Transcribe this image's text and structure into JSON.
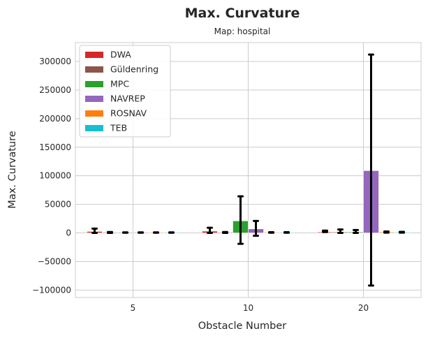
{
  "chart_data": {
    "type": "bar",
    "title": "Max. Curvature",
    "subtitle": "Map: hospital",
    "xlabel": "Obstacle Number",
    "ylabel": "Max. Curvature",
    "categories": [
      "5",
      "10",
      "20"
    ],
    "ylim": [
      -113000,
      333000
    ],
    "yticks": [
      -100000,
      -50000,
      0,
      50000,
      100000,
      150000,
      200000,
      250000,
      300000
    ],
    "ytick_labels": [
      "−100000",
      "−50000",
      "0",
      "50000",
      "100000",
      "150000",
      "200000",
      "250000",
      "300000"
    ],
    "grid": true,
    "legend_position": "top-left",
    "series": [
      {
        "name": "DWA",
        "color": "#d62728",
        "values": [
          2500,
          3000,
          1500
        ],
        "err_low": [
          0,
          0,
          1500
        ],
        "err_high": [
          7500,
          9000,
          4000
        ]
      },
      {
        "name": "Güldenring",
        "color": "#8c564b",
        "values": [
          1000,
          1000,
          1500
        ],
        "err_low": [
          0,
          0,
          0
        ],
        "err_high": [
          1500,
          1500,
          6000
        ]
      },
      {
        "name": "MPC",
        "color": "#2ca02c",
        "values": [
          600,
          21000,
          1500
        ],
        "err_low": [
          300,
          -19000,
          0
        ],
        "err_high": [
          900,
          64000,
          5000
        ]
      },
      {
        "name": "NAVREP",
        "color": "#9467bd",
        "values": [
          600,
          7000,
          109000
        ],
        "err_low": [
          300,
          -5000,
          -92000
        ],
        "err_high": [
          900,
          21000,
          312000
        ]
      },
      {
        "name": "ROSNAV",
        "color": "#ff7f0e",
        "values": [
          600,
          900,
          1500
        ],
        "err_low": [
          300,
          300,
          500
        ],
        "err_high": [
          900,
          1300,
          2500
        ]
      },
      {
        "name": "TEB",
        "color": "#17becf",
        "values": [
          600,
          900,
          1200
        ],
        "err_low": [
          300,
          300,
          500
        ],
        "err_high": [
          900,
          1300,
          1900
        ]
      }
    ]
  }
}
